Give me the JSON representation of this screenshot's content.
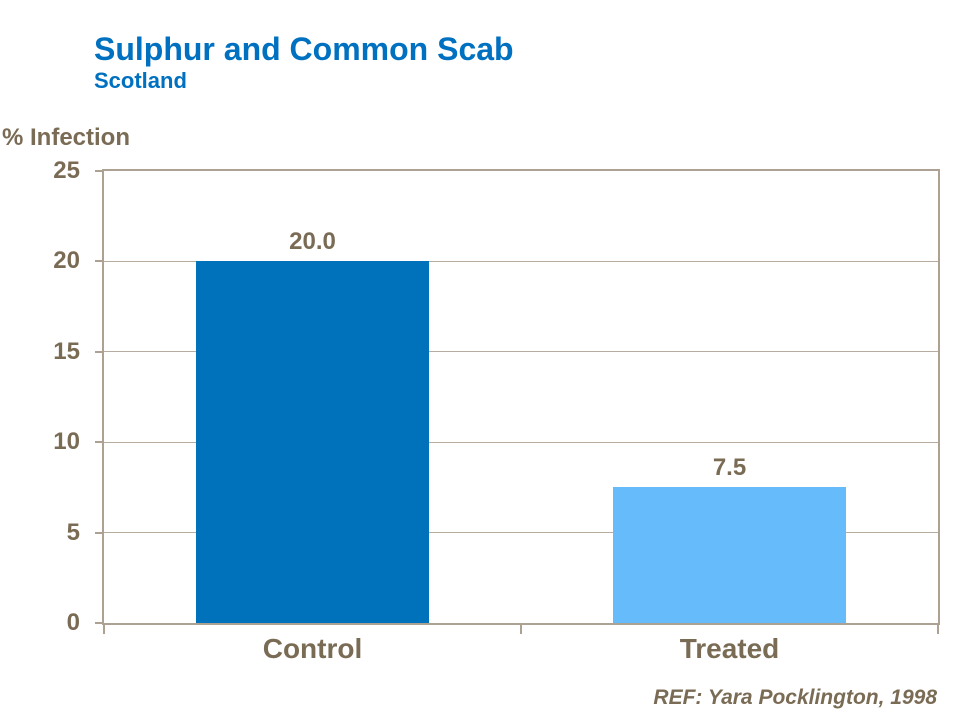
{
  "header": {
    "title": "Sulphur and Common Scab",
    "subtitle": "Scotland"
  },
  "footer": {
    "reference": "REF: Yara Pocklington, 1998"
  },
  "chart_data": {
    "type": "bar",
    "title": "Sulphur and Common Scab",
    "subtitle": "Scotland",
    "categories": [
      "Control",
      "Treated"
    ],
    "values": [
      20.0,
      7.5
    ],
    "value_labels": [
      "20.0",
      "7.5"
    ],
    "xlabel": "",
    "ylabel": "% Infection",
    "ylim": [
      0,
      25
    ],
    "yticks": [
      0,
      5,
      10,
      15,
      20,
      25
    ],
    "grid": true,
    "legend": "none",
    "bar_colors": [
      "#0072BC",
      "#66BBFA"
    ]
  },
  "colors": {
    "title_blue": "#0070C0",
    "bar_control": "#0072BC",
    "bar_treated": "#66BBFA",
    "axis_text": "#7A6B55",
    "axis_line": "#ADA193",
    "gridline": "#B7AC9F",
    "background": "#FFFFFF"
  }
}
